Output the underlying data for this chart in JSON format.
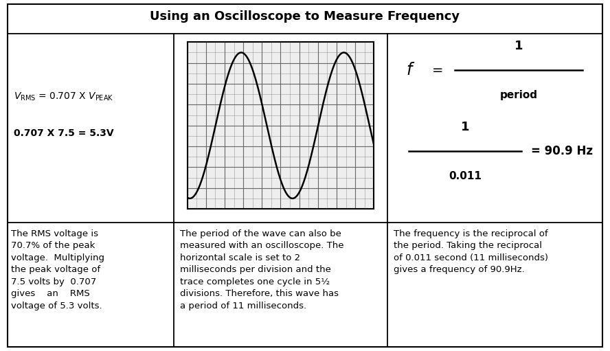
{
  "title": "Using an Oscilloscope to Measure Frequency",
  "title_fontsize": 13,
  "bg_color": "#ffffff",
  "border_color": "#000000",
  "col1_bottom": "The RMS voltage is\n70.7% of the peak\nvoltage.  Multiplying\nthe peak voltage of\n7.5 volts by  0.707\ngives    an    RMS\nvoltage of 5.3 volts.",
  "col2_bottom": "The period of the wave can also be\nmeasured with an oscilloscope. The\nhorizontal scale is set to 2\nmilliseconds per division and the\ntrace completes one cycle in 5½\ndivisions. Therefore, this wave has\na period of 11 milliseconds.",
  "col3_bottom": "The frequency is the reciprocal of\nthe period. Taking the reciprocal\nof 0.011 second (11 milliseconds)\ngives a frequency of 90.9Hz.",
  "text_fontsize": 9.5,
  "osc_grid_rows": 8,
  "osc_grid_cols": 10
}
